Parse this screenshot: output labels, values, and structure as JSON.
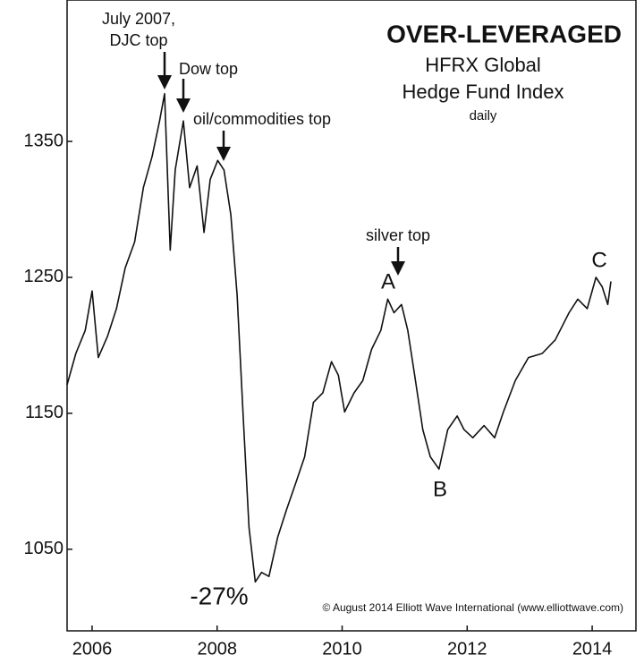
{
  "chart_data": {
    "type": "line",
    "title": "OVER-LEVERAGED",
    "subtitle": [
      "HFRX Global",
      "Hedge Fund Index",
      "daily"
    ],
    "annotations": [
      "July 2007,",
      "DJC top",
      "Dow top",
      "oil/commodities top",
      "silver top",
      "A",
      "B",
      "C",
      "-27%",
      "© August 2014 Elliott Wave International (www.elliottwave.com)"
    ],
    "color": "#111111",
    "x": [
      2005.6,
      2005.74,
      2005.89,
      2006.0,
      2006.1,
      2006.25,
      2006.39,
      2006.53,
      2006.68,
      2006.82,
      2006.96,
      2007.08,
      2007.16,
      2007.25,
      2007.33,
      2007.46,
      2007.56,
      2007.68,
      2007.79,
      2007.89,
      2008.01,
      2008.11,
      2008.22,
      2008.32,
      2008.42,
      2008.51,
      2008.61,
      2008.71,
      2008.83,
      2008.97,
      2009.11,
      2009.26,
      2009.4,
      2009.54,
      2009.69,
      2009.83,
      2009.94,
      2010.04,
      2010.19,
      2010.33,
      2010.47,
      2010.62,
      2010.73,
      2010.83,
      2010.95,
      2011.05,
      2011.16,
      2011.29,
      2011.41,
      2011.55,
      2011.69,
      2011.84,
      2011.95,
      2012.09,
      2012.27,
      2012.44,
      2012.58,
      2012.77,
      2012.98,
      2013.2,
      2013.41,
      2013.63,
      2013.77,
      2013.92,
      2014.06,
      2014.16,
      2014.25,
      2014.3
    ],
    "values": [
      1171,
      1194,
      1211,
      1240,
      1191,
      1207,
      1227,
      1257,
      1276,
      1316,
      1339,
      1365,
      1385,
      1270,
      1329,
      1365,
      1316,
      1332,
      1283,
      1322,
      1336,
      1329,
      1296,
      1237,
      1145,
      1066,
      1026,
      1033,
      1030,
      1059,
      1079,
      1099,
      1118,
      1158,
      1165,
      1188,
      1178,
      1151,
      1165,
      1174,
      1197,
      1211,
      1234,
      1224,
      1230,
      1211,
      1178,
      1138,
      1118,
      1109,
      1138,
      1148,
      1138,
      1132,
      1141,
      1132,
      1151,
      1174,
      1191,
      1194,
      1204,
      1224,
      1234,
      1227,
      1250,
      1243,
      1230,
      1247
    ],
    "xlim": [
      2005.6,
      2014.7
    ],
    "xticks": [
      2006,
      2008,
      2010,
      2012,
      2014
    ],
    "ylim": [
      990,
      1454
    ],
    "yticks": [
      1050,
      1150,
      1250,
      1350
    ],
    "grid": false
  }
}
